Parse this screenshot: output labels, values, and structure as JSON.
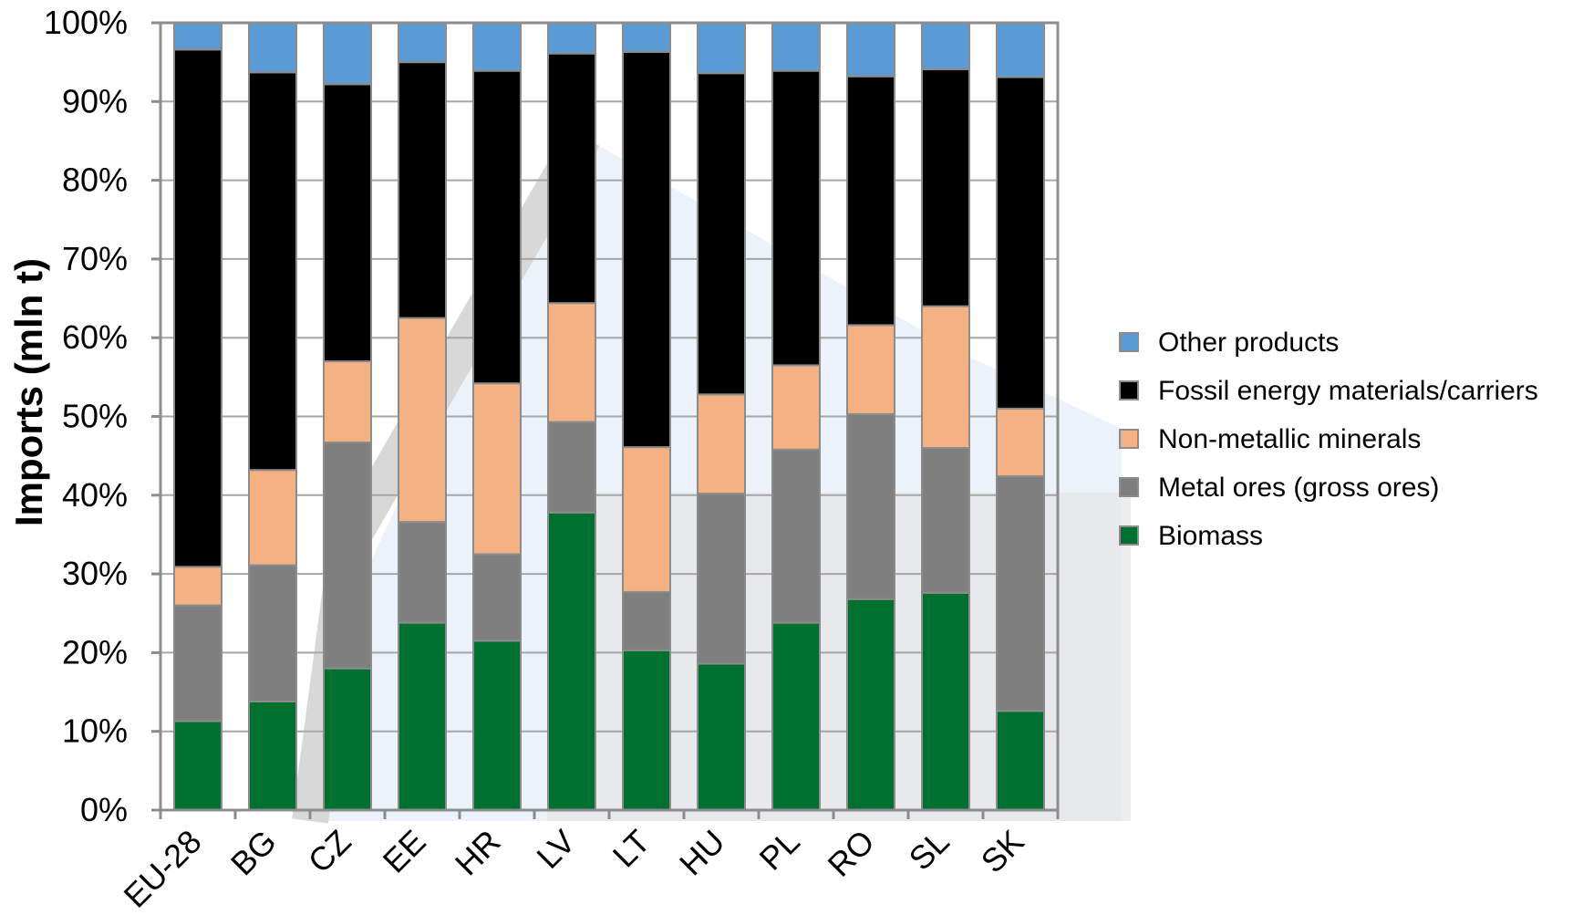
{
  "chart_data": {
    "type": "bar",
    "stacked": true,
    "ylabel": "Imports  (mln t)",
    "xlabel": "",
    "ylim": [
      0,
      100
    ],
    "y_ticks": [
      "0%",
      "10%",
      "20%",
      "30%",
      "40%",
      "50%",
      "60%",
      "70%",
      "80%",
      "90%",
      "100%"
    ],
    "grid": true,
    "legend_position": "right",
    "categories": [
      "EU-28",
      "BG",
      "CZ",
      "EE",
      "HR",
      "LV",
      "LT",
      "HU",
      "PL",
      "RO",
      "SL",
      "SK"
    ],
    "series": [
      {
        "name": "Biomass",
        "color": "#007030",
        "values": [
          11.3,
          13.8,
          18.0,
          23.8,
          21.5,
          37.8,
          20.3,
          18.6,
          23.8,
          26.8,
          27.6,
          12.6
        ]
      },
      {
        "name": "Metal ores (gross ores)",
        "color": "#7f7f7f",
        "values": [
          14.7,
          17.3,
          28.7,
          12.8,
          11.0,
          11.5,
          7.4,
          21.6,
          22.0,
          23.5,
          18.4,
          29.8
        ]
      },
      {
        "name": "Non-metallic minerals",
        "color": "#f4b183",
        "values": [
          4.9,
          12.1,
          10.3,
          25.9,
          21.7,
          15.1,
          18.4,
          12.6,
          10.7,
          11.3,
          18.0,
          8.6
        ]
      },
      {
        "name": "Fossil energy materials/carriers",
        "color": "#000000",
        "values": [
          65.7,
          50.5,
          35.2,
          32.5,
          39.7,
          31.7,
          50.2,
          40.8,
          37.4,
          31.6,
          30.1,
          42.1
        ]
      },
      {
        "name": "Other products",
        "color": "#5b9bd5",
        "values": [
          3.4,
          6.3,
          7.8,
          5.0,
          6.1,
          3.9,
          3.7,
          6.4,
          6.1,
          6.8,
          5.9,
          6.9
        ]
      }
    ],
    "legend_order": [
      "Other products",
      "Fossil energy materials/carriers",
      "Non-metallic minerals",
      "Metal ores (gross ores)",
      "Biomass"
    ]
  }
}
